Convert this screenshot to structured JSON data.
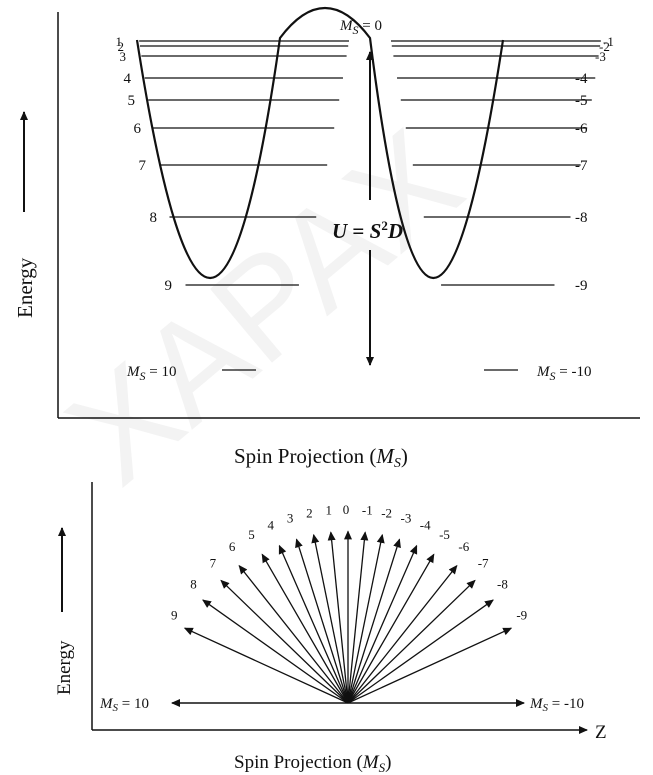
{
  "top": {
    "ms_zero_label": "M",
    "ms_zero_sub": "S",
    "ms_zero_tail": " = 0",
    "left_levels": [
      "1",
      "2",
      "3",
      "4",
      "5",
      "6",
      "7",
      "8",
      "9"
    ],
    "right_levels": [
      "-1",
      "-2",
      "-3",
      "-4",
      "-5",
      "-6",
      "-7",
      "-8",
      "-9"
    ],
    "left_bottom": {
      "m": "M",
      "sub": "S",
      "tail": " = 10"
    },
    "right_bottom": {
      "m": "M",
      "sub": "S",
      "tail": " = -10"
    },
    "barrier_u": "U",
    "barrier_eq": " = ",
    "barrier_s": "S",
    "barrier_exp": "2",
    "barrier_d": "D",
    "y_label": "Energy",
    "x_label_text": "Spin Projection (",
    "x_label_m": "M",
    "x_label_sub": "S",
    "x_label_close": ")"
  },
  "bottom": {
    "fan_labels": [
      "9",
      "8",
      "7",
      "6",
      "5",
      "4",
      "3",
      "2",
      "1",
      "0",
      "-1",
      "-2",
      "-3",
      "-4",
      "-5",
      "-6",
      "-7",
      "-8",
      "-9"
    ],
    "left_end": {
      "m": "M",
      "sub": "S",
      "tail": " = 10"
    },
    "right_end": {
      "m": "M",
      "sub": "S",
      "tail": " = -10"
    },
    "z_label": "Z",
    "y_label": "Energy",
    "x_label_text": "Spin Projection (",
    "x_label_m": "M",
    "x_label_sub": "S",
    "x_label_close": ")"
  },
  "watermark": "XAPAX"
}
